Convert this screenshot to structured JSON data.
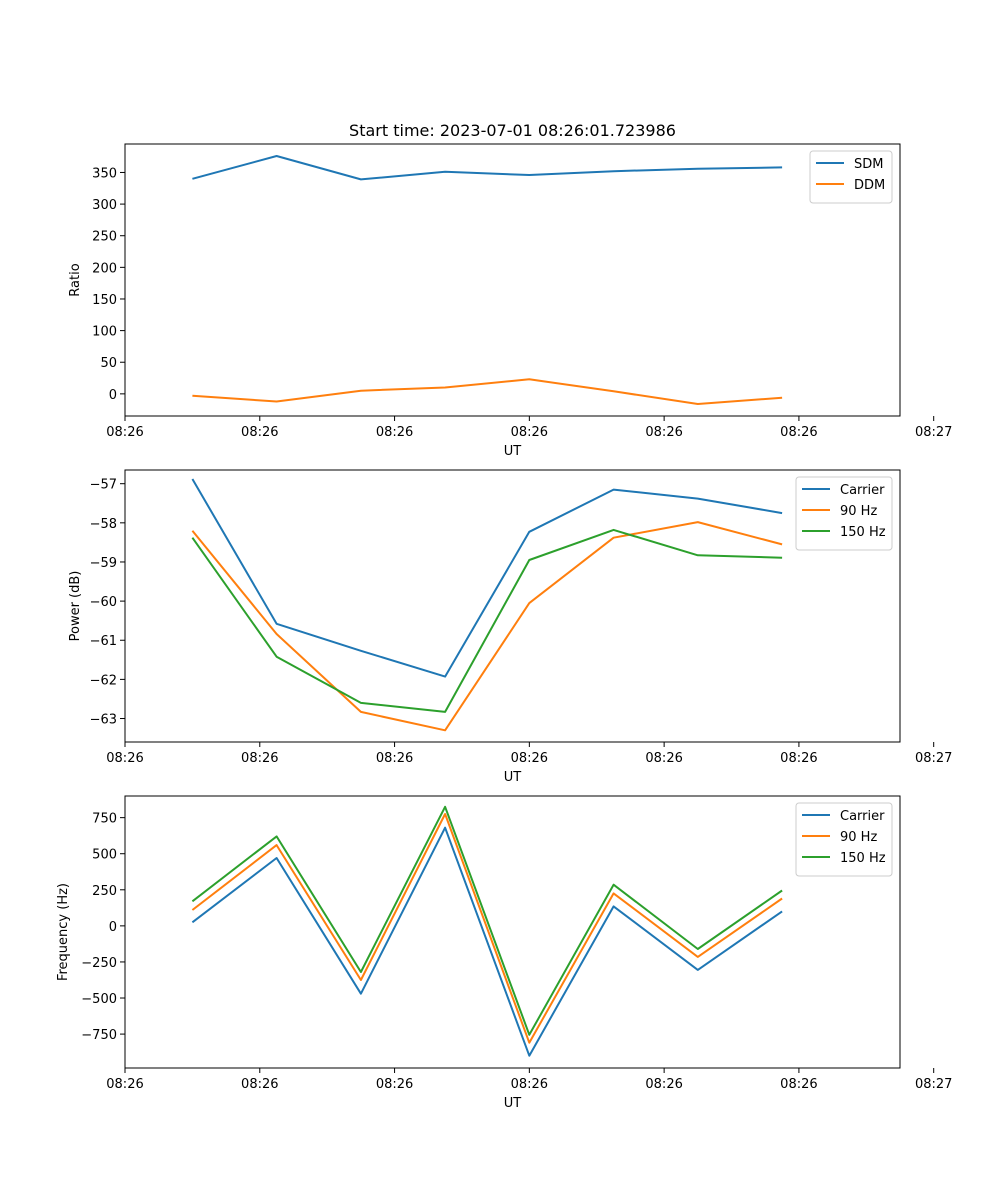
{
  "chart_data": [
    {
      "type": "line",
      "title": "Start time: 2023-07-01 08:26:01.723986",
      "xlabel": "UT",
      "ylabel": "Ratio",
      "x": [
        1,
        2,
        3,
        4,
        5,
        6,
        7,
        8
      ],
      "xlim": [
        0.2,
        9.4
      ],
      "xticks": [
        0.2,
        1.8,
        3.4,
        5.0,
        6.6,
        8.2,
        9.8
      ],
      "xtick_labels": [
        "08:26",
        "08:26",
        "08:26",
        "08:26",
        "08:26",
        "08:26",
        "08:27"
      ],
      "ylim": [
        -35,
        395
      ],
      "yticks": [
        0,
        50,
        100,
        150,
        200,
        250,
        300,
        350
      ],
      "ytick_labels": [
        "0",
        "50",
        "100",
        "150",
        "200",
        "250",
        "300",
        "350"
      ],
      "legend_position": "upper right",
      "series": [
        {
          "name": "SDM",
          "color": "#1f77b4",
          "values": [
            340,
            376,
            339,
            351,
            346,
            352,
            356,
            358
          ]
        },
        {
          "name": "DDM",
          "color": "#ff7f0e",
          "values": [
            -3,
            -12,
            5,
            10,
            23,
            4,
            -16,
            -6
          ]
        }
      ]
    },
    {
      "type": "line",
      "title": "",
      "xlabel": "UT",
      "ylabel": "Power (dB)",
      "x": [
        1,
        2,
        3,
        4,
        5,
        6,
        7,
        8
      ],
      "xlim": [
        0.2,
        9.4
      ],
      "xticks": [
        0.2,
        1.8,
        3.4,
        5.0,
        6.6,
        8.2,
        9.8
      ],
      "xtick_labels": [
        "08:26",
        "08:26",
        "08:26",
        "08:26",
        "08:26",
        "08:26",
        "08:27"
      ],
      "ylim": [
        -63.6,
        -56.65
      ],
      "yticks": [
        -63,
        -62,
        -61,
        -60,
        -59,
        -58,
        -57
      ],
      "ytick_labels": [
        "−63",
        "−62",
        "−61",
        "−60",
        "−59",
        "−58",
        "−57"
      ],
      "legend_position": "upper right",
      "series": [
        {
          "name": "Carrier",
          "color": "#1f77b4",
          "values": [
            -56.88,
            -60.58,
            -61.27,
            -61.93,
            -58.23,
            -57.15,
            -57.38,
            -57.75
          ]
        },
        {
          "name": "90 Hz",
          "color": "#ff7f0e",
          "values": [
            -58.2,
            -60.84,
            -62.83,
            -63.3,
            -60.05,
            -58.38,
            -57.98,
            -58.55
          ]
        },
        {
          "name": "150 Hz",
          "color": "#2ca02c",
          "values": [
            -58.38,
            -61.42,
            -62.6,
            -62.83,
            -58.95,
            -58.18,
            -58.83,
            -58.89
          ]
        }
      ]
    },
    {
      "type": "line",
      "title": "",
      "xlabel": "UT",
      "ylabel": "Frequency (Hz)",
      "x": [
        1,
        2,
        3,
        4,
        5,
        6,
        7,
        8
      ],
      "xlim": [
        0.2,
        9.4
      ],
      "xticks": [
        0.2,
        1.8,
        3.4,
        5.0,
        6.6,
        8.2,
        9.8
      ],
      "xtick_labels": [
        "08:26",
        "08:26",
        "08:26",
        "08:26",
        "08:26",
        "08:26",
        "08:27"
      ],
      "ylim": [
        -985,
        900
      ],
      "yticks": [
        -750,
        -500,
        -250,
        0,
        250,
        500,
        750
      ],
      "ytick_labels": [
        "−750",
        "−500",
        "−250",
        "0",
        "250",
        "500",
        "750"
      ],
      "legend_position": "upper right",
      "series": [
        {
          "name": "Carrier",
          "color": "#1f77b4",
          "values": [
            25,
            470,
            -470,
            680,
            -900,
            135,
            -305,
            100
          ]
        },
        {
          "name": "90 Hz",
          "color": "#ff7f0e",
          "values": [
            110,
            560,
            -375,
            775,
            -810,
            225,
            -215,
            190
          ]
        },
        {
          "name": "150 Hz",
          "color": "#2ca02c",
          "values": [
            170,
            620,
            -320,
            825,
            -755,
            285,
            -160,
            245
          ]
        }
      ]
    }
  ]
}
